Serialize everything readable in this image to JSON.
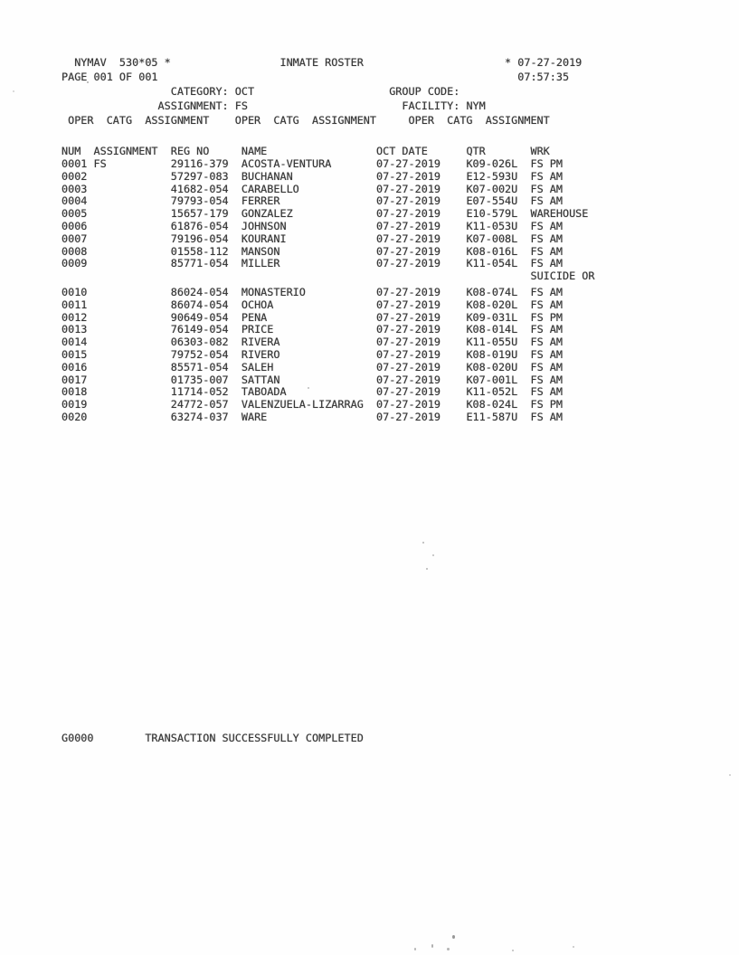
{
  "header": {
    "system": "NYMAV  530*05 *",
    "title": "INMATE ROSTER",
    "star": "*",
    "date": "07-27-2019",
    "page_info": "PAGE 001 OF 001",
    "time": "07:57:35",
    "category_label": "CATEGORY:",
    "category_value": "OCT",
    "group_code_label": "GROUP CODE:",
    "assignment_label": "ASSIGNMENT:",
    "assignment_value": "FS",
    "facility_label": "FACILITY:",
    "facility_value": "NYM",
    "oper_catg_header": "OPER  CATG  ASSIGNMENT"
  },
  "table": {
    "columns": {
      "num": "NUM",
      "assignment": "ASSIGNMENT",
      "reg_no": "REG NO",
      "name": "NAME",
      "oct_date": "OCT DATE",
      "qtr": "QTR",
      "wrk": "WRK"
    },
    "rows": [
      {
        "num": "0001",
        "assignment": "FS",
        "reg_no": "29116-379",
        "name": "ACOSTA-VENTURA",
        "oct_date": "07-27-2019",
        "qtr": "K09-026L",
        "wrk": "FS PM"
      },
      {
        "num": "0002",
        "assignment": "",
        "reg_no": "57297-083",
        "name": "BUCHANAN",
        "oct_date": "07-27-2019",
        "qtr": "E12-593U",
        "wrk": "FS AM"
      },
      {
        "num": "0003",
        "assignment": "",
        "reg_no": "41682-054",
        "name": "CARABELLO",
        "oct_date": "07-27-2019",
        "qtr": "K07-002U",
        "wrk": "FS AM"
      },
      {
        "num": "0004",
        "assignment": "",
        "reg_no": "79793-054",
        "name": "FERRER",
        "oct_date": "07-27-2019",
        "qtr": "E07-554U",
        "wrk": "FS AM"
      },
      {
        "num": "0005",
        "assignment": "",
        "reg_no": "15657-179",
        "name": "GONZALEZ",
        "oct_date": "07-27-2019",
        "qtr": "E10-579L",
        "wrk": "WAREHOUSE"
      },
      {
        "num": "0006",
        "assignment": "",
        "reg_no": "61876-054",
        "name": "JOHNSON",
        "oct_date": "07-27-2019",
        "qtr": "K11-053U",
        "wrk": "FS AM"
      },
      {
        "num": "0007",
        "assignment": "",
        "reg_no": "79196-054",
        "name": "KOURANI",
        "oct_date": "07-27-2019",
        "qtr": "K07-008L",
        "wrk": "FS AM"
      },
      {
        "num": "0008",
        "assignment": "",
        "reg_no": "01558-112",
        "name": "MANSON",
        "oct_date": "07-27-2019",
        "qtr": "K08-016L",
        "wrk": "FS AM"
      },
      {
        "num": "0009",
        "assignment": "",
        "reg_no": "85771-054",
        "name": "MILLER",
        "oct_date": "07-27-2019",
        "qtr": "K11-054L",
        "wrk": "FS AM"
      },
      {
        "num": "",
        "assignment": "",
        "reg_no": "",
        "name": "",
        "oct_date": "",
        "qtr": "",
        "wrk": "SUICIDE OR"
      },
      {
        "num": "0010",
        "assignment": "",
        "reg_no": "86024-054",
        "name": "MONASTERIO",
        "oct_date": "07-27-2019",
        "qtr": "K08-074L",
        "wrk": "FS AM"
      },
      {
        "num": "0011",
        "assignment": "",
        "reg_no": "86074-054",
        "name": "OCHOA",
        "oct_date": "07-27-2019",
        "qtr": "K08-020L",
        "wrk": "FS AM"
      },
      {
        "num": "0012",
        "assignment": "",
        "reg_no": "90649-054",
        "name": "PENA",
        "oct_date": "07-27-2019",
        "qtr": "K09-031L",
        "wrk": "FS PM"
      },
      {
        "num": "0013",
        "assignment": "",
        "reg_no": "76149-054",
        "name": "PRICE",
        "oct_date": "07-27-2019",
        "qtr": "K08-014L",
        "wrk": "FS AM"
      },
      {
        "num": "0014",
        "assignment": "",
        "reg_no": "06303-082",
        "name": "RIVERA",
        "oct_date": "07-27-2019",
        "qtr": "K11-055U",
        "wrk": "FS AM"
      },
      {
        "num": "0015",
        "assignment": "",
        "reg_no": "79752-054",
        "name": "RIVERO",
        "oct_date": "07-27-2019",
        "qtr": "K08-019U",
        "wrk": "FS AM"
      },
      {
        "num": "0016",
        "assignment": "",
        "reg_no": "85571-054",
        "name": "SALEH",
        "oct_date": "07-27-2019",
        "qtr": "K08-020U",
        "wrk": "FS AM"
      },
      {
        "num": "0017",
        "assignment": "",
        "reg_no": "01735-007",
        "name": "SATTAN",
        "oct_date": "07-27-2019",
        "qtr": "K07-001L",
        "wrk": "FS AM"
      },
      {
        "num": "0018",
        "assignment": "",
        "reg_no": "11714-052",
        "name": "TABOADA",
        "oct_date": "07-27-2019",
        "qtr": "K11-052L",
        "wrk": "FS AM"
      },
      {
        "num": "0019",
        "assignment": "",
        "reg_no": "24772-057",
        "name": "VALENZUELA-LIZARRAG",
        "oct_date": "07-27-2019",
        "qtr": "K08-024L",
        "wrk": "FS PM"
      },
      {
        "num": "0020",
        "assignment": "",
        "reg_no": "63274-037",
        "name": "WARE",
        "oct_date": "07-27-2019",
        "qtr": "E11-587U",
        "wrk": "FS AM"
      }
    ]
  },
  "footer": {
    "code": "G0000",
    "message": "TRANSACTION SUCCESSFULLY COMPLETED"
  },
  "colors": {
    "paper": "#fefefe",
    "ink": "#373737"
  }
}
